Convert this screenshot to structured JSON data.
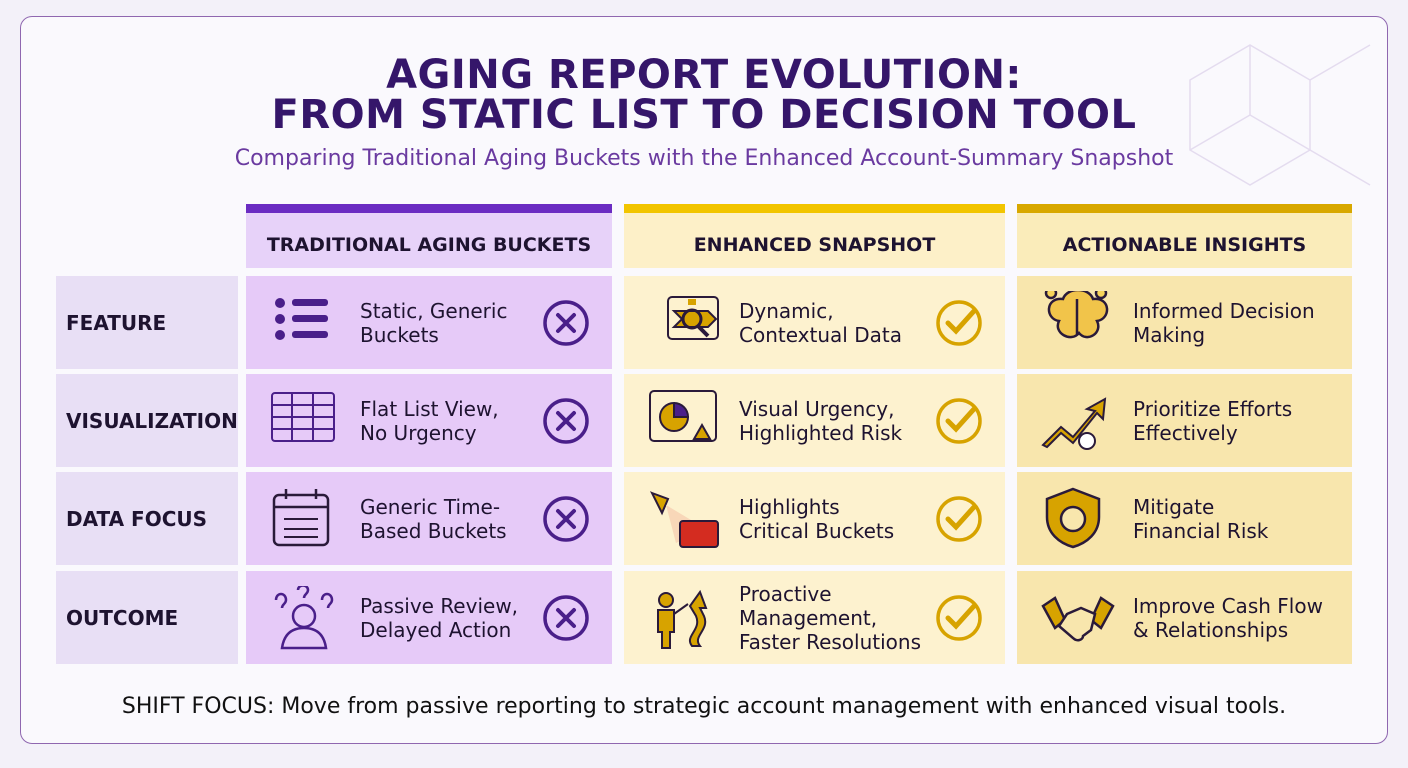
{
  "title": [
    "AGING REPORT EVOLUTION:",
    "FROM STATIC LIST TO DECISION TOOL"
  ],
  "subtitle": "Comparing Traditional Aging Buckets with the Enhanced Account-Summary Snapshot",
  "table": {
    "columns": [
      "TRADITIONAL AGING BUCKETS",
      "ENHANCED SNAPSHOT",
      "ACTIONABLE INSIGHTS"
    ],
    "rows": [
      {
        "label": "FEATURE",
        "cells": [
          [
            "Static, Generic",
            "Buckets"
          ],
          [
            "Dynamic,",
            "Contextual Data"
          ],
          [
            "Informed Decision",
            "Making"
          ]
        ]
      },
      {
        "label": "VISUALIZATION",
        "cells": [
          [
            "Flat List View,",
            "No Urgency"
          ],
          [
            "Visual Urgency,",
            "Highlighted Risk"
          ],
          [
            "Prioritize Efforts",
            "Effectively"
          ]
        ]
      },
      {
        "label": "DATA FOCUS",
        "cells": [
          [
            "Generic Time-",
            "Based Buckets"
          ],
          [
            "Highlights",
            "Critical Buckets"
          ],
          [
            "Mitigate",
            "Financial Risk"
          ]
        ]
      },
      {
        "label": "OUTCOME",
        "cells": [
          [
            "Passive Review,",
            "Delayed Action"
          ],
          [
            "Proactive",
            "Management,",
            "Faster Resolutions"
          ],
          [
            "Improve Cash Flow",
            "& Relationships"
          ]
        ]
      }
    ]
  },
  "footer": "SHIFT FOCUS: Move from passive reporting to strategic account management with enhanced visual tools."
}
